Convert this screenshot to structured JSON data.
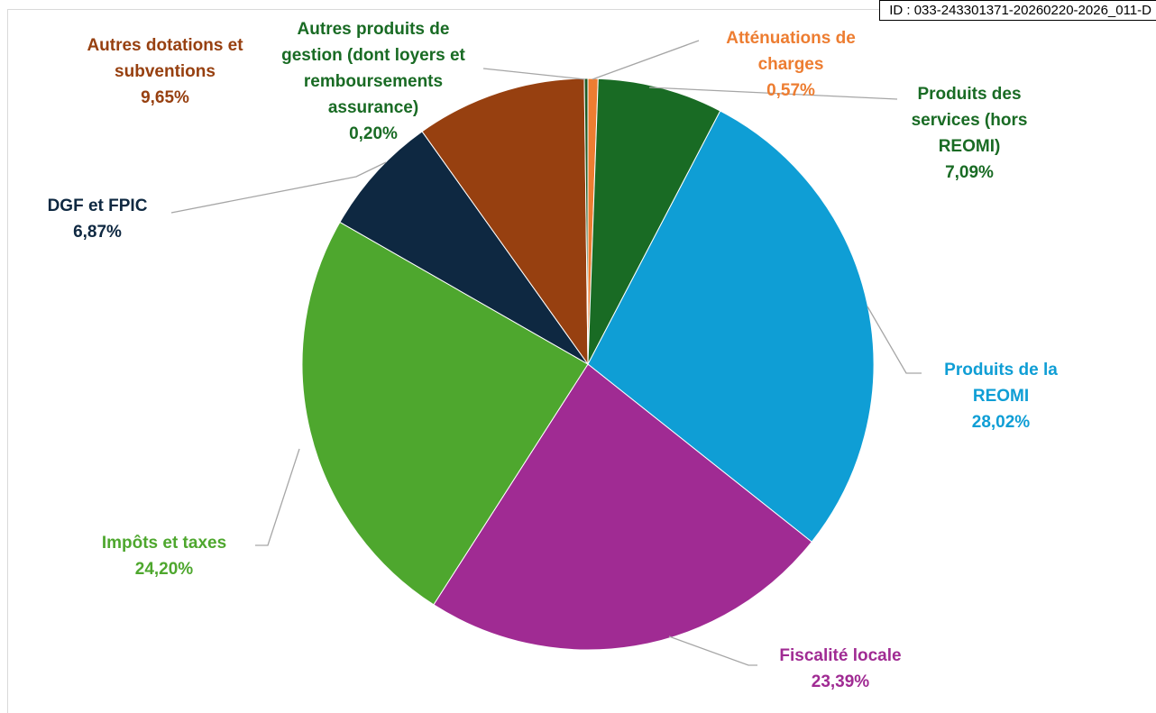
{
  "stamp": "ID : 033-243301371-20260220-2026_011-D",
  "chart_data": {
    "type": "pie",
    "categories": [
      "Atténuations de charges",
      "Produits des services (hors REOMI)",
      "Produits de la REOMI",
      "Fiscalité locale",
      "Impôts et taxes",
      "DGF et FPIC",
      "Autres dotations et subventions",
      "Autres produits de gestion (dont loyers et remboursements assurance)"
    ],
    "values": [
      0.57,
      7.09,
      28.02,
      23.39,
      24.2,
      6.87,
      9.65,
      0.2
    ],
    "value_labels": [
      "0,57%",
      "7,09%",
      "28,02%",
      "23,39%",
      "24,20%",
      "6,87%",
      "9,65%",
      "0,20%"
    ],
    "colors": [
      "#ED7D31",
      "#196B24",
      "#0F9ED5",
      "#A02B93",
      "#4EA72E",
      "#0E2841",
      "#974010",
      "#1E5A24"
    ],
    "label_colors": [
      "#ED7D31",
      "#196B24",
      "#0F9ED5",
      "#A02B93",
      "#4EA72E",
      "#0E2841",
      "#974010",
      "#196B24"
    ]
  }
}
